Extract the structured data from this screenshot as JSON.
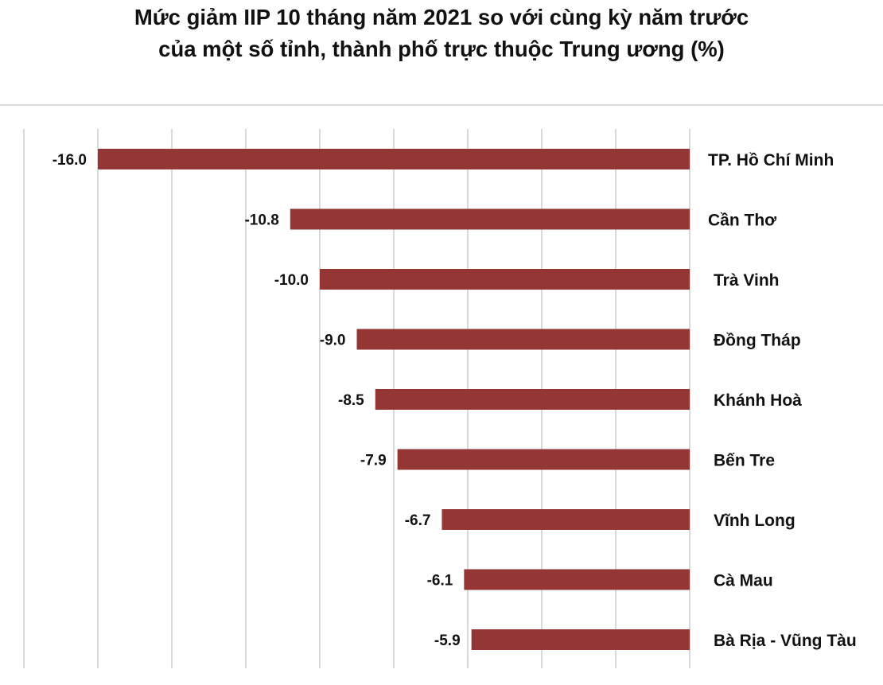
{
  "title_line1": "Mức giảm IIP 10 tháng năm 2021 so với cùng kỳ năm trước",
  "title_line2": "của một số tỉnh, thành phố trực thuộc Trung ương (%)",
  "chart_data": {
    "type": "bar",
    "orientation": "horizontal",
    "title": "Mức giảm IIP 10 tháng năm 2021 so với cùng kỳ năm trước của một số tỉnh, thành phố trực thuộc Trung ương (%)",
    "categories": [
      "TP. Hồ Chí Minh",
      "Cần Thơ",
      "Trà Vinh",
      "Đồng Tháp",
      "Khánh Hoà",
      "Bến Tre",
      "Vĩnh Long",
      "Cà Mau",
      "Bà Rịa - Vũng Tàu"
    ],
    "values": [
      -16.0,
      -10.8,
      -10.0,
      -9.0,
      -8.5,
      -7.9,
      -6.7,
      -6.1,
      -5.9
    ],
    "value_labels": [
      "-16.0",
      "-10.8",
      "-10.0",
      "-9.0",
      "-8.5",
      "-7.9",
      "-6.7",
      "-6.1",
      "-5.9"
    ],
    "xlim": [
      -18,
      0
    ],
    "grid": true,
    "bar_color": "#943634",
    "gridline_color": "#d9d9d9"
  }
}
